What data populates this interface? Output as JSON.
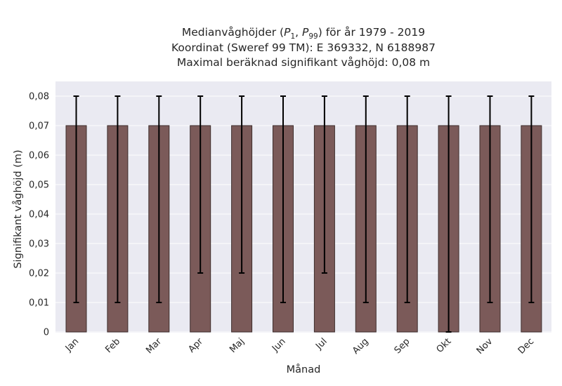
{
  "chart_data": {
    "type": "bar",
    "title": {
      "line1_prefix": "Medianvåghöjder (",
      "line1_p1_symbol": "P",
      "line1_p1_sub": "1",
      "line1_separator": ", ",
      "line1_p99_symbol": "P",
      "line1_p99_sub": "99",
      "line1_suffix": ") för år 1979 - 2019",
      "line2": "Koordinat (Sweref 99 TM): E 369332, N 6188987",
      "line3": "Maximal beräknad signifikant våghöjd: 0,08 m"
    },
    "xlabel": "Månad",
    "ylabel": "Signifikant våghöjd (m)",
    "categories": [
      "Jan",
      "Feb",
      "Mar",
      "Apr",
      "Maj",
      "Jun",
      "Jul",
      "Aug",
      "Sep",
      "Okt",
      "Nov",
      "Dec"
    ],
    "values": [
      0.07,
      0.07,
      0.07,
      0.07,
      0.07,
      0.07,
      0.07,
      0.07,
      0.07,
      0.07,
      0.07,
      0.07
    ],
    "error_low": [
      0.01,
      0.01,
      0.01,
      0.02,
      0.02,
      0.01,
      0.02,
      0.01,
      0.01,
      0.0,
      0.01,
      0.01
    ],
    "error_high": [
      0.08,
      0.08,
      0.08,
      0.08,
      0.08,
      0.08,
      0.08,
      0.08,
      0.08,
      0.08,
      0.08,
      0.08
    ],
    "ylim": [
      0,
      0.08
    ],
    "yticks": [
      0,
      0.01,
      0.02,
      0.03,
      0.04,
      0.05,
      0.06,
      0.07,
      0.08
    ],
    "ytick_labels": [
      "0",
      "0,01",
      "0,02",
      "0,03",
      "0,04",
      "0,05",
      "0,06",
      "0,07",
      "0,08"
    ],
    "grid": true,
    "colors": {
      "bar": "#7b5a59",
      "bar_edge": "#3d2d2c",
      "error_bar": "#000000",
      "plot_background": "#eaeaf2",
      "grid": "#ffffff"
    }
  }
}
